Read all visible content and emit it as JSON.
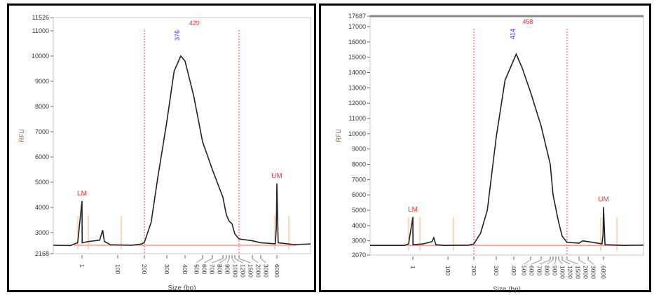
{
  "chart_data": [
    {
      "type": "line",
      "title": "",
      "xlabel": "Size (bp)",
      "ylabel": "RFU",
      "ylim": [
        2168,
        11526
      ],
      "yticks": [
        2168,
        3000,
        4000,
        5000,
        6000,
        7000,
        8000,
        9000,
        10000,
        11000,
        11526
      ],
      "xticks": [
        "1",
        "100",
        "200",
        "300",
        "400",
        "500",
        "600",
        "700",
        "800",
        "900",
        "1000",
        "1200",
        "1500",
        "2000",
        "3000",
        "6000"
      ],
      "smear_range_bp": [
        200,
        1500
      ],
      "annotations": [
        {
          "text": "LM",
          "x": 1
        },
        {
          "text": "UM",
          "x": 6000
        },
        {
          "text": "429",
          "x": 429,
          "color": "#ff3030"
        },
        {
          "text": "376",
          "x": 376,
          "color": "#3030ff"
        }
      ],
      "series": [
        {
          "name": "trace",
          "color": "#222222",
          "points": [
            [
              0,
              2500
            ],
            [
              0.6,
              2490
            ],
            [
              0.85,
              2600
            ],
            [
              1,
              4250
            ],
            [
              1.3,
              2600
            ],
            [
              20,
              2650
            ],
            [
              50,
              2700
            ],
            [
              58,
              3100
            ],
            [
              63,
              2650
            ],
            [
              80,
              2520
            ],
            [
              150,
              2500
            ],
            [
              190,
              2550
            ],
            [
              200,
              2620
            ],
            [
              230,
              3400
            ],
            [
              260,
              5200
            ],
            [
              300,
              7400
            ],
            [
              340,
              9400
            ],
            [
              376,
              10000
            ],
            [
              400,
              9800
            ],
            [
              450,
              8400
            ],
            [
              500,
              6600
            ],
            [
              600,
              5500
            ],
            [
              700,
              4400
            ],
            [
              800,
              3700
            ],
            [
              900,
              3450
            ],
            [
              1000,
              3350
            ],
            [
              1200,
              2950
            ],
            [
              1500,
              2750
            ],
            [
              2000,
              2680
            ],
            [
              3000,
              2600
            ],
            [
              5700,
              2560
            ],
            [
              5900,
              3200
            ],
            [
              6000,
              4950
            ],
            [
              6150,
              2600
            ],
            [
              8000,
              2530
            ],
            [
              10000,
              2550
            ]
          ]
        }
      ]
    },
    {
      "type": "line",
      "title": "",
      "xlabel": "Size (bp)",
      "ylabel": "RFU",
      "ylim": [
        2070,
        17687
      ],
      "yticks": [
        2070,
        3000,
        4000,
        5000,
        6000,
        7000,
        8000,
        9000,
        10000,
        11000,
        12000,
        13000,
        14000,
        15000,
        16000,
        17000,
        17687
      ],
      "xticks": [
        "1",
        "100",
        "200",
        "300",
        "400",
        "500",
        "600",
        "700",
        "800",
        "900",
        "1000",
        "1200",
        "1500",
        "2000",
        "3000",
        "6000"
      ],
      "smear_range_bp": [
        200,
        1500
      ],
      "annotations": [
        {
          "text": "LM",
          "x": 1
        },
        {
          "text": "UM",
          "x": 6000
        },
        {
          "text": "458",
          "x": 458,
          "color": "#ff3030"
        },
        {
          "text": "414",
          "x": 414,
          "color": "#3030ff"
        }
      ],
      "series": [
        {
          "name": "trace",
          "color": "#222222",
          "points": [
            [
              0,
              2700
            ],
            [
              0.8,
              2700
            ],
            [
              0.9,
              2800
            ],
            [
              1,
              4550
            ],
            [
              1.3,
              2750
            ],
            [
              30,
              2800
            ],
            [
              55,
              2950
            ],
            [
              60,
              3200
            ],
            [
              66,
              2750
            ],
            [
              90,
              2700
            ],
            [
              180,
              2720
            ],
            [
              200,
              2800
            ],
            [
              230,
              3500
            ],
            [
              260,
              5000
            ],
            [
              300,
              9800
            ],
            [
              350,
              13500
            ],
            [
              414,
              15200
            ],
            [
              450,
              14300
            ],
            [
              500,
              12700
            ],
            [
              600,
              10500
            ],
            [
              700,
              8000
            ],
            [
              800,
              6000
            ],
            [
              1000,
              4200
            ],
            [
              1200,
              3300
            ],
            [
              1500,
              2900
            ],
            [
              2000,
              2850
            ],
            [
              2400,
              3000
            ],
            [
              3000,
              2950
            ],
            [
              5700,
              2800
            ],
            [
              5900,
              3400
            ],
            [
              6000,
              5200
            ],
            [
              6150,
              2750
            ],
            [
              8000,
              2700
            ],
            [
              10000,
              2720
            ]
          ]
        }
      ]
    }
  ]
}
